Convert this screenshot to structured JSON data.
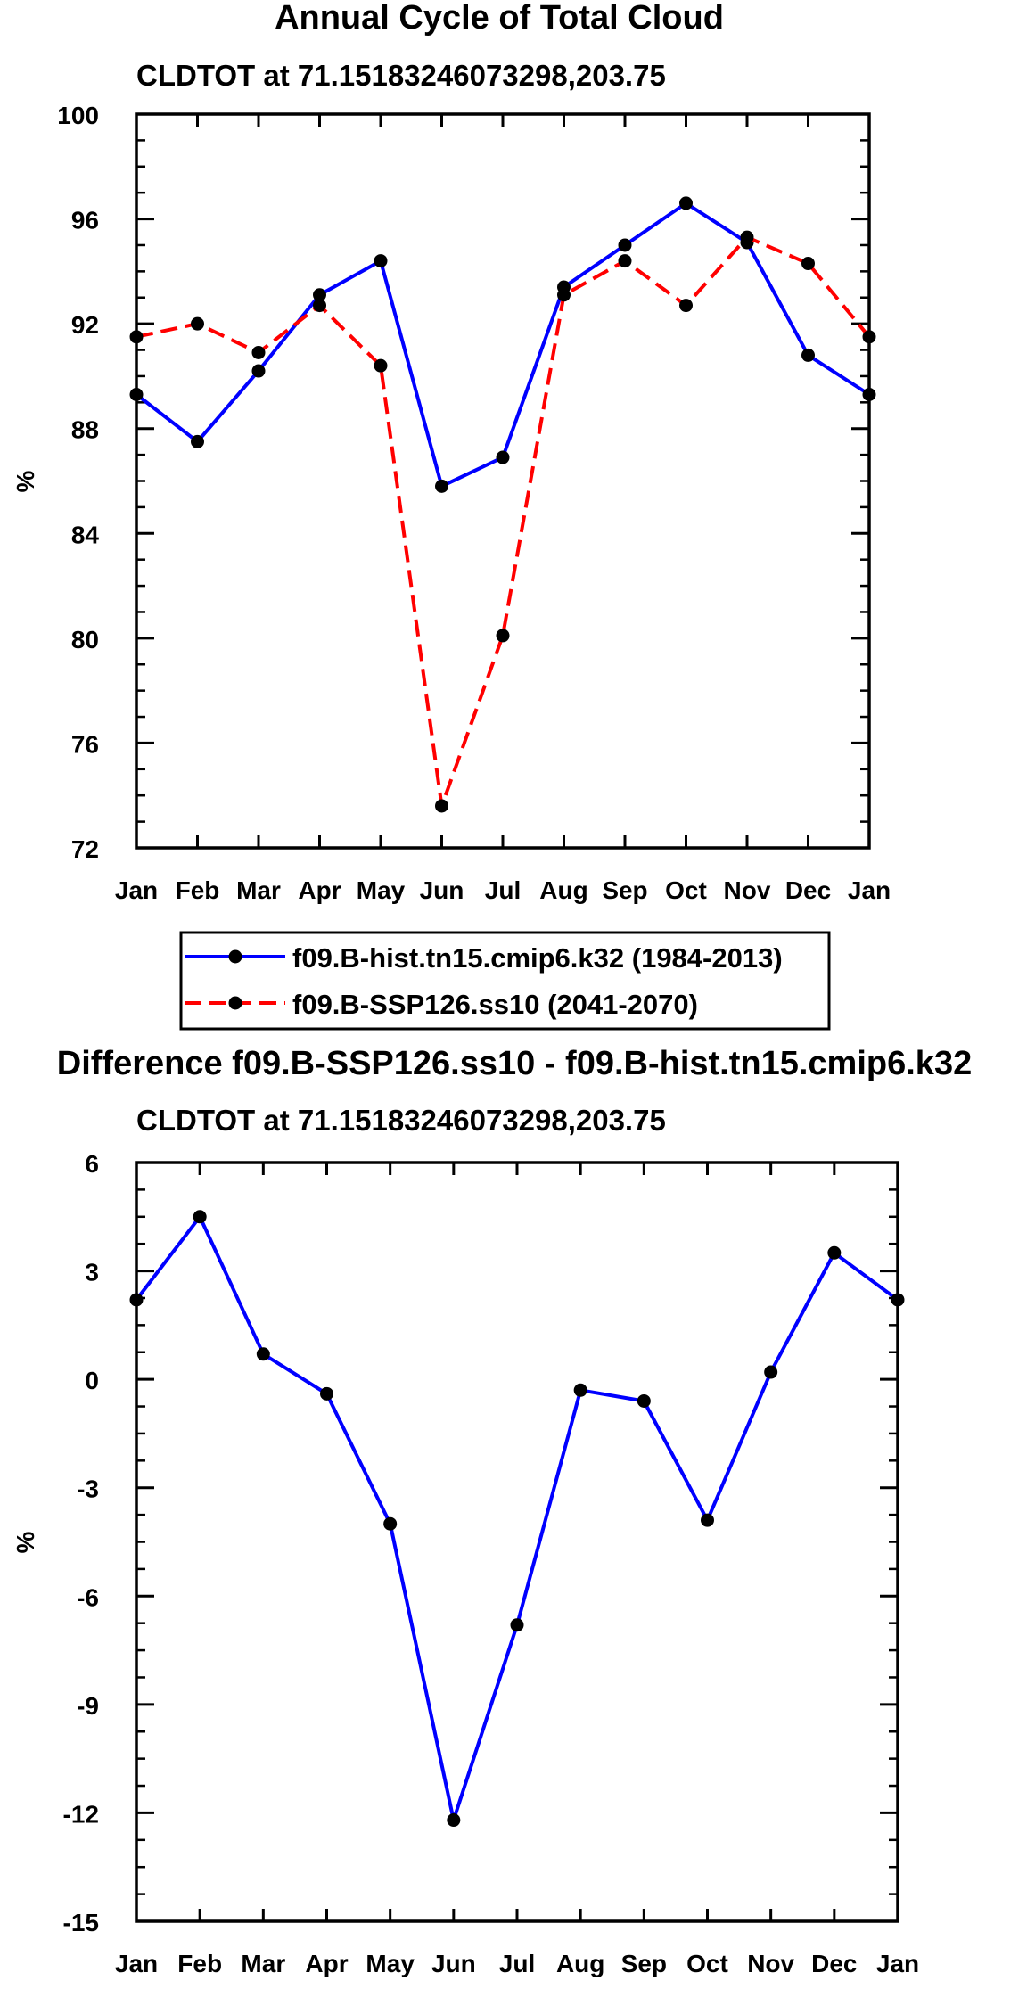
{
  "chart_data": [
    {
      "type": "line",
      "title": "Annual Cycle of Total Cloud",
      "subtitle": "CLDTOT at 71.15183246073298,203.75",
      "xlabel": "",
      "ylabel": "%",
      "categories": [
        "Jan",
        "Feb",
        "Mar",
        "Apr",
        "May",
        "Jun",
        "Jul",
        "Aug",
        "Sep",
        "Oct",
        "Nov",
        "Dec",
        "Jan"
      ],
      "ylim": [
        72,
        100
      ],
      "yticks": [
        "72",
        "76",
        "80",
        "84",
        "88",
        "92",
        "96",
        "100"
      ],
      "grid": false,
      "legend_position": "bottom",
      "series": [
        {
          "name": "f09.B-hist.tn15.cmip6.k32 (1984-2013)",
          "color": "#0000ff",
          "line_style": "solid",
          "values": [
            89.3,
            87.5,
            90.2,
            93.1,
            94.4,
            85.8,
            86.9,
            93.4,
            95.0,
            96.6,
            95.1,
            90.8,
            89.3
          ]
        },
        {
          "name": "f09.B-SSP126.ss10 (2041-2070)",
          "color": "#ff0000",
          "line_style": "dashed",
          "values": [
            91.5,
            92.0,
            90.9,
            92.7,
            90.4,
            73.6,
            80.1,
            93.1,
            94.4,
            92.7,
            95.3,
            94.3,
            91.5
          ]
        }
      ]
    },
    {
      "type": "line",
      "title": "Difference f09.B-SSP126.ss10 - f09.B-hist.tn15.cmip6.k32",
      "subtitle": "CLDTOT at 71.15183246073298,203.75",
      "xlabel": "",
      "ylabel": "%",
      "categories": [
        "Jan",
        "Feb",
        "Mar",
        "Apr",
        "May",
        "Jun",
        "Jul",
        "Aug",
        "Sep",
        "Oct",
        "Nov",
        "Dec",
        "Jan"
      ],
      "ylim": [
        -15,
        6
      ],
      "yticks": [
        "-15",
        "-12",
        "-9",
        "-6",
        "-3",
        "0",
        "3",
        "6"
      ],
      "grid": false,
      "series": [
        {
          "name": "Difference",
          "color": "#0000ff",
          "line_style": "solid",
          "values": [
            2.2,
            4.5,
            0.7,
            -0.4,
            -4.0,
            -12.2,
            -6.8,
            -0.3,
            -0.6,
            -3.9,
            0.2,
            3.5,
            2.2
          ]
        }
      ]
    }
  ]
}
